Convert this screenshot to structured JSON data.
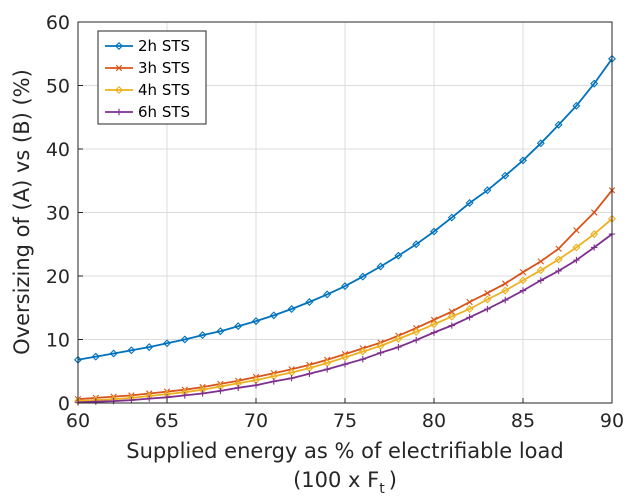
{
  "chart_data": {
    "type": "line",
    "x": [
      60,
      61,
      62,
      63,
      64,
      65,
      66,
      67,
      68,
      69,
      70,
      71,
      72,
      73,
      74,
      75,
      76,
      77,
      78,
      79,
      80,
      81,
      82,
      83,
      84,
      85,
      86,
      87,
      88,
      89,
      90
    ],
    "xlabel": "Supplied energy as % of electrifiable load",
    "xlabel_line2": "(100 x  F",
    "xlabel_sub": "t",
    "xlabel_close": ")",
    "ylabel": "Oversizing of (A) vs (B) (%)",
    "xlim": [
      60,
      90
    ],
    "ylim": [
      0,
      60
    ],
    "xticks": [
      "60",
      "65",
      "70",
      "75",
      "80",
      "85",
      "90"
    ],
    "yticks": [
      "0",
      "10",
      "20",
      "30",
      "40",
      "50",
      "60"
    ],
    "grid": true,
    "legend_position": "top-left",
    "series": [
      {
        "name": "2h STS",
        "color": "#0072BD",
        "marker": "diamond",
        "values": [
          6.8,
          7.3,
          7.8,
          8.3,
          8.8,
          9.4,
          10.0,
          10.7,
          11.3,
          12.1,
          12.9,
          13.8,
          14.8,
          15.9,
          17.1,
          18.4,
          19.9,
          21.5,
          23.2,
          25.0,
          27.0,
          29.2,
          31.5,
          33.5,
          35.8,
          38.2,
          40.9,
          43.8,
          46.8,
          50.3,
          54.2
        ]
      },
      {
        "name": "3h STS",
        "color": "#D95319",
        "marker": "x",
        "values": [
          0.6,
          0.8,
          1.0,
          1.2,
          1.5,
          1.8,
          2.1,
          2.5,
          3.0,
          3.5,
          4.1,
          4.7,
          5.3,
          6.0,
          6.8,
          7.7,
          8.6,
          9.5,
          10.6,
          11.8,
          13.1,
          14.4,
          15.9,
          17.3,
          18.8,
          20.6,
          22.3,
          24.3,
          27.2,
          30.0,
          33.5
        ]
      },
      {
        "name": "4h STS",
        "color": "#EDB120",
        "marker": "diamond",
        "values": [
          0.3,
          0.45,
          0.6,
          0.8,
          1.1,
          1.4,
          1.7,
          2.1,
          2.6,
          3.1,
          3.6,
          4.2,
          4.8,
          5.5,
          6.3,
          7.2,
          8.1,
          9.0,
          10.1,
          11.2,
          12.4,
          13.6,
          14.8,
          16.3,
          17.7,
          19.3,
          20.9,
          22.6,
          24.5,
          26.6,
          29.0
        ]
      },
      {
        "name": "6h STS",
        "color": "#7E2F8E",
        "marker": "plus",
        "values": [
          0.1,
          0.2,
          0.3,
          0.45,
          0.7,
          0.9,
          1.2,
          1.5,
          1.9,
          2.4,
          2.8,
          3.4,
          3.9,
          4.6,
          5.3,
          6.1,
          6.9,
          7.9,
          8.8,
          9.9,
          11.1,
          12.2,
          13.5,
          14.8,
          16.2,
          17.7,
          19.3,
          20.8,
          22.5,
          24.5,
          26.6
        ]
      }
    ]
  }
}
